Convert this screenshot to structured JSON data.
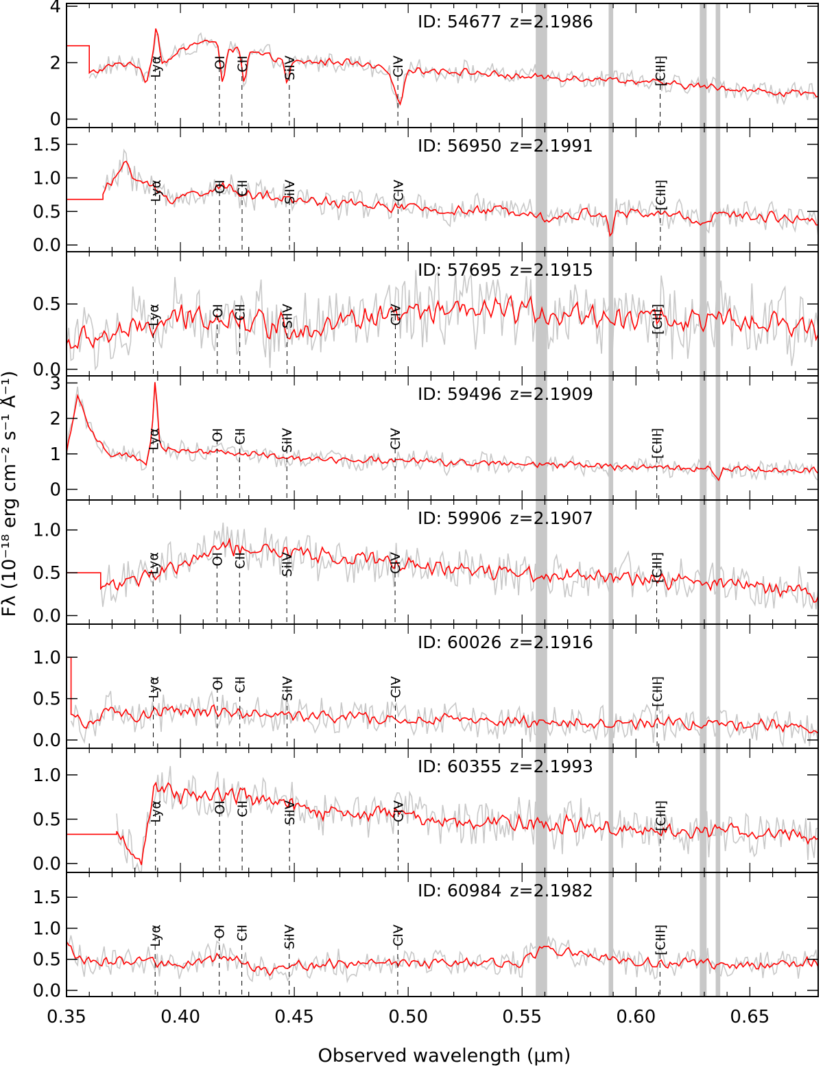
{
  "chart_data": {
    "type": "line",
    "xlabel": "Observed wavelength (μm)",
    "ylabel": "Fλ (10⁻¹⁸ erg cm⁻² s⁻¹ Å⁻¹)",
    "xlim": [
      0.35,
      0.68
    ],
    "x_ticks": [
      "0.35",
      "0.40",
      "0.45",
      "0.50",
      "0.55",
      "0.60",
      "0.65"
    ],
    "shaded_bands_um": [
      [
        0.556,
        0.561
      ],
      [
        0.588,
        0.59
      ],
      [
        0.628,
        0.631
      ],
      [
        0.635,
        0.637
      ]
    ],
    "colors": {
      "smoothed": "#ff0000",
      "raw": "#c8c8c8",
      "band": "#c8c8c8"
    },
    "emission_lines": [
      {
        "label": "Lyα",
        "rest_um": 0.1216
      },
      {
        "label": "OI",
        "rest_um": 0.1304
      },
      {
        "label": "CII",
        "rest_um": 0.1335
      },
      {
        "label": "SiIV",
        "rest_um": 0.14
      },
      {
        "label": "CIV",
        "rest_um": 0.1549
      },
      {
        "label": "[CIII]",
        "rest_um": 0.1909
      }
    ],
    "panels": [
      {
        "id_text": "ID: 54677",
        "z_text": "z=2.1986",
        "z": 2.1986,
        "ylim": [
          -0.3,
          4.1
        ],
        "yticks": [
          "0",
          "2",
          "4"
        ],
        "red_start": [
          0.35,
          2.6
        ],
        "red_step_to": 0.36,
        "continuum": [
          [
            0.36,
            1.6
          ],
          [
            0.37,
            1.9
          ],
          [
            0.38,
            2.0
          ],
          [
            0.385,
            1.3
          ],
          [
            0.388,
            2.4
          ],
          [
            0.3895,
            3.4
          ],
          [
            0.392,
            2.0
          ],
          [
            0.4,
            2.4
          ],
          [
            0.41,
            2.8
          ],
          [
            0.418,
            2.6
          ],
          [
            0.428,
            2.4
          ],
          [
            0.44,
            2.2
          ],
          [
            0.45,
            2.0
          ],
          [
            0.47,
            2.05
          ],
          [
            0.49,
            1.75
          ],
          [
            0.4965,
            0.65
          ],
          [
            0.5,
            1.75
          ],
          [
            0.52,
            1.7
          ],
          [
            0.55,
            1.5
          ],
          [
            0.58,
            1.45
          ],
          [
            0.6,
            1.35
          ],
          [
            0.62,
            1.2
          ],
          [
            0.64,
            1.1
          ],
          [
            0.66,
            0.95
          ],
          [
            0.68,
            0.85
          ]
        ],
        "dips": [
          [
            0.4185,
            1.4
          ],
          [
            0.428,
            1.3
          ],
          [
            0.447,
            1.3
          ]
        ],
        "noise": 0.15
      },
      {
        "id_text": "ID: 56950",
        "z_text": "z=2.1991",
        "z": 2.1991,
        "ylim": [
          -0.1,
          1.75
        ],
        "yticks": [
          "0.0",
          "0.5",
          "1.0",
          "1.5"
        ],
        "red_start": [
          0.35,
          0.68
        ],
        "red_step_to": 0.366,
        "continuum": [
          [
            0.366,
            0.8
          ],
          [
            0.372,
            1.0
          ],
          [
            0.376,
            1.28
          ],
          [
            0.38,
            1.0
          ],
          [
            0.39,
            0.8
          ],
          [
            0.395,
            0.68
          ],
          [
            0.41,
            0.8
          ],
          [
            0.42,
            0.85
          ],
          [
            0.44,
            0.7
          ],
          [
            0.46,
            0.65
          ],
          [
            0.48,
            0.6
          ],
          [
            0.5,
            0.55
          ],
          [
            0.52,
            0.5
          ],
          [
            0.555,
            0.52
          ],
          [
            0.56,
            0.38
          ],
          [
            0.58,
            0.48
          ],
          [
            0.6,
            0.47
          ],
          [
            0.62,
            0.45
          ],
          [
            0.628,
            0.33
          ],
          [
            0.635,
            0.45
          ],
          [
            0.66,
            0.42
          ],
          [
            0.68,
            0.38
          ]
        ],
        "dips": [
          [
            0.589,
            0.15
          ]
        ],
        "noise": 0.09
      },
      {
        "id_text": "ID: 57695",
        "z_text": "z=2.1915",
        "z": 2.1915,
        "ylim": [
          -0.05,
          0.9
        ],
        "yticks": [
          "0.0",
          "0.5"
        ],
        "red_start": null,
        "red_step_to": null,
        "continuum": [
          [
            0.35,
            0.2
          ],
          [
            0.38,
            0.3
          ],
          [
            0.41,
            0.42
          ],
          [
            0.45,
            0.32
          ],
          [
            0.5,
            0.42
          ],
          [
            0.55,
            0.45
          ],
          [
            0.6,
            0.4
          ],
          [
            0.65,
            0.35
          ],
          [
            0.68,
            0.3
          ]
        ],
        "dips": [],
        "noise": 0.12
      },
      {
        "id_text": "ID: 59496",
        "z_text": "z=2.1909",
        "z": 2.1909,
        "ylim": [
          -0.3,
          3.2
        ],
        "yticks": [
          "0",
          "1",
          "2",
          "3"
        ],
        "red_start": null,
        "red_step_to": null,
        "continuum": [
          [
            0.35,
            1.0
          ],
          [
            0.355,
            2.7
          ],
          [
            0.36,
            1.6
          ],
          [
            0.37,
            1.0
          ],
          [
            0.38,
            0.9
          ],
          [
            0.385,
            0.6
          ],
          [
            0.3875,
            1.5
          ],
          [
            0.389,
            3.1
          ],
          [
            0.391,
            1.2
          ],
          [
            0.4,
            1.1
          ],
          [
            0.42,
            1.05
          ],
          [
            0.45,
            0.85
          ],
          [
            0.5,
            0.8
          ],
          [
            0.55,
            0.7
          ],
          [
            0.6,
            0.65
          ],
          [
            0.64,
            0.55
          ],
          [
            0.68,
            0.55
          ]
        ],
        "dips": [
          [
            0.636,
            0.3
          ]
        ],
        "noise": 0.12
      },
      {
        "id_text": "ID: 59906",
        "z_text": "z=2.1907",
        "z": 2.1907,
        "ylim": [
          -0.1,
          1.35
        ],
        "yticks": [
          "0.0",
          "0.5",
          "1.0"
        ],
        "red_start": [
          0.35,
          0.5
        ],
        "red_step_to": 0.365,
        "continuum": [
          [
            0.365,
            0.35
          ],
          [
            0.38,
            0.4
          ],
          [
            0.4,
            0.6
          ],
          [
            0.42,
            0.8
          ],
          [
            0.44,
            0.75
          ],
          [
            0.46,
            0.7
          ],
          [
            0.48,
            0.65
          ],
          [
            0.5,
            0.6
          ],
          [
            0.52,
            0.55
          ],
          [
            0.55,
            0.5
          ],
          [
            0.6,
            0.42
          ],
          [
            0.65,
            0.35
          ],
          [
            0.68,
            0.25
          ]
        ],
        "dips": [],
        "noise": 0.11
      },
      {
        "id_text": "ID: 60026",
        "z_text": "z=2.1916",
        "z": 2.1916,
        "ylim": [
          -0.1,
          1.4
        ],
        "yticks": [
          "0.0",
          "0.5",
          "1.0"
        ],
        "red_start": [
          0.35,
          1.0
        ],
        "red_step_to": 0.352,
        "continuum": [
          [
            0.352,
            0.3
          ],
          [
            0.36,
            0.2
          ],
          [
            0.37,
            0.35
          ],
          [
            0.38,
            0.25
          ],
          [
            0.39,
            0.35
          ],
          [
            0.42,
            0.35
          ],
          [
            0.45,
            0.28
          ],
          [
            0.5,
            0.25
          ],
          [
            0.55,
            0.22
          ],
          [
            0.6,
            0.2
          ],
          [
            0.65,
            0.2
          ],
          [
            0.68,
            0.15
          ]
        ],
        "dips": [],
        "noise": 0.09
      },
      {
        "id_text": "ID: 60355",
        "z_text": "z=2.1993",
        "z": 2.1993,
        "ylim": [
          -0.1,
          1.3
        ],
        "yticks": [
          "0.0",
          "0.5",
          "1.0"
        ],
        "red_start": [
          0.35,
          0.33
        ],
        "red_step_to": 0.372,
        "continuum": [
          [
            0.372,
            0.3
          ],
          [
            0.376,
            0.2
          ],
          [
            0.383,
            0.05
          ],
          [
            0.389,
            0.9
          ],
          [
            0.4,
            0.75
          ],
          [
            0.42,
            0.8
          ],
          [
            0.44,
            0.7
          ],
          [
            0.46,
            0.6
          ],
          [
            0.48,
            0.55
          ],
          [
            0.5,
            0.6
          ],
          [
            0.51,
            0.45
          ],
          [
            0.53,
            0.5
          ],
          [
            0.56,
            0.45
          ],
          [
            0.6,
            0.4
          ],
          [
            0.65,
            0.35
          ],
          [
            0.68,
            0.3
          ]
        ],
        "dips": [],
        "noise": 0.11
      },
      {
        "id_text": "ID: 60984",
        "z_text": "z=2.1982",
        "z": 2.1982,
        "ylim": [
          -0.1,
          1.9
        ],
        "yticks": [
          "0.0",
          "0.5",
          "1.0",
          "1.5"
        ],
        "red_start": null,
        "red_step_to": null,
        "continuum": [
          [
            0.35,
            0.8
          ],
          [
            0.355,
            0.5
          ],
          [
            0.37,
            0.45
          ],
          [
            0.4,
            0.45
          ],
          [
            0.41,
            0.45
          ],
          [
            0.418,
            0.55
          ],
          [
            0.43,
            0.4
          ],
          [
            0.44,
            0.3
          ],
          [
            0.45,
            0.4
          ],
          [
            0.5,
            0.45
          ],
          [
            0.55,
            0.45
          ],
          [
            0.56,
            0.7
          ],
          [
            0.6,
            0.45
          ],
          [
            0.65,
            0.4
          ],
          [
            0.68,
            0.45
          ]
        ],
        "dips": [],
        "noise": 0.1
      }
    ]
  }
}
